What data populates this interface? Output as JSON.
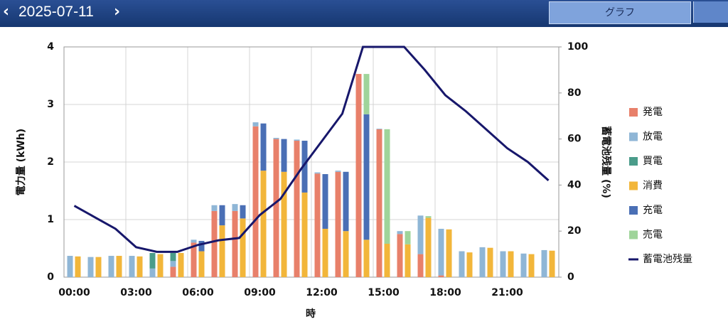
{
  "header": {
    "date": "2025-07-11",
    "tab": "グラフ"
  },
  "chart_data": {
    "type": "bar",
    "xlabel": "時",
    "ylabel": "電力量 (kWh)",
    "y2label": "蓄電池残量 (%)",
    "categories": [
      "00:00",
      null,
      null,
      "03:00",
      null,
      null,
      "06:00",
      null,
      null,
      "09:00",
      null,
      null,
      "12:00",
      null,
      null,
      "15:00",
      null,
      null,
      "18:00",
      null,
      null,
      "21:00",
      null,
      null
    ],
    "ylim": [
      0,
      4
    ],
    "yticks": [
      0,
      1,
      2,
      3,
      4
    ],
    "y2lim": [
      0,
      100
    ],
    "y2ticks": [
      0,
      20,
      40,
      60,
      80,
      100
    ],
    "grid": true,
    "legend": "right",
    "series": [
      {
        "name": "発電",
        "color": "#e8806a",
        "stack": 0,
        "values": [
          0,
          0,
          0,
          0,
          0,
          0.18,
          0.6,
          1.15,
          1.15,
          2.62,
          2.4,
          2.37,
          1.8,
          1.83,
          3.53,
          2.57,
          0.75,
          0.4,
          0.03,
          0,
          0,
          0,
          0,
          0
        ]
      },
      {
        "name": "放電",
        "color": "#8fb6d6",
        "stack": 0,
        "values": [
          0.37,
          0.35,
          0.37,
          0.37,
          0.15,
          0.1,
          0.05,
          0.1,
          0.12,
          0.07,
          0.02,
          0.02,
          0.02,
          0.02,
          0,
          0.01,
          0.05,
          0.67,
          0.81,
          0.45,
          0.52,
          0.45,
          0.41,
          0.47
        ]
      },
      {
        "name": "買電",
        "color": "#4a9c8a",
        "stack": 0,
        "values": [
          0,
          0,
          0,
          0,
          0.27,
          0.14,
          0,
          0,
          0,
          0,
          0,
          0,
          0,
          0,
          0,
          0,
          0,
          0,
          0,
          0,
          0,
          0,
          0,
          0
        ]
      },
      {
        "name": "消費",
        "color": "#f2b63a",
        "stack": 1,
        "values": [
          0.36,
          0.35,
          0.37,
          0.36,
          0.4,
          0.42,
          0.45,
          0.9,
          1.02,
          1.85,
          1.83,
          1.47,
          0.84,
          0.8,
          0.65,
          0.58,
          0.57,
          1.03,
          0.83,
          0.43,
          0.51,
          0.45,
          0.4,
          0.46
        ]
      },
      {
        "name": "充電",
        "color": "#4a6fb5",
        "stack": 1,
        "values": [
          0,
          0,
          0,
          0,
          0,
          0,
          0.18,
          0.35,
          0.23,
          0.82,
          0.57,
          0.9,
          0.95,
          1.03,
          2.18,
          0,
          0,
          0,
          0,
          0,
          0,
          0,
          0,
          0
        ]
      },
      {
        "name": "売電",
        "color": "#9fd49a",
        "stack": 1,
        "values": [
          0,
          0,
          0,
          0,
          0,
          0,
          0,
          0,
          0,
          0,
          0,
          0,
          0,
          0,
          0.7,
          1.99,
          0.23,
          0.03,
          0,
          0,
          0,
          0,
          0,
          0
        ]
      },
      {
        "name": "蓄電池残量",
        "color": "#17176b",
        "type": "line",
        "axis": "y2",
        "values": [
          31,
          26,
          21,
          13,
          11,
          11,
          14,
          16,
          17,
          27,
          34,
          47,
          59,
          71,
          100,
          100,
          100,
          90,
          79,
          72,
          64,
          56,
          50,
          42
        ]
      }
    ]
  }
}
